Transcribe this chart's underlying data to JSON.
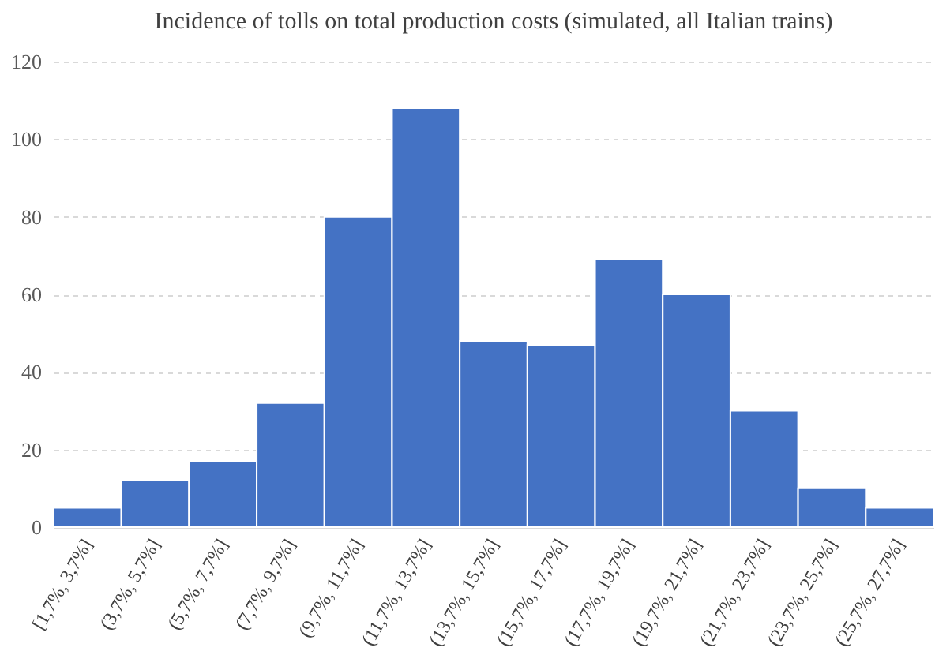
{
  "chart_data": {
    "type": "bar",
    "title": "Incidence of tolls on total production costs (simulated, all Italian trains)",
    "categories": [
      "[1,7%, 3,7%]",
      "(3,7%, 5,7%]",
      "(5,7%, 7,7%]",
      "(7,7%, 9,7%]",
      "(9,7%, 11,7%]",
      "(11,7%, 13,7%]",
      "(13,7%, 15,7%]",
      "(15,7%, 17,7%]",
      "(17,7%, 19,7%]",
      "(19,7%, 21,7%]",
      "(21,7%, 23,7%]",
      "(23,7%, 25,7%]",
      "(25,7%, 27,7%]"
    ],
    "values": [
      5,
      12,
      17,
      32,
      80,
      108,
      48,
      47,
      69,
      60,
      30,
      10,
      5
    ],
    "color": "#4472c4",
    "ylim": [
      0,
      120
    ],
    "yticks": [
      0,
      20,
      40,
      60,
      80,
      100,
      120
    ],
    "grid": "y"
  }
}
